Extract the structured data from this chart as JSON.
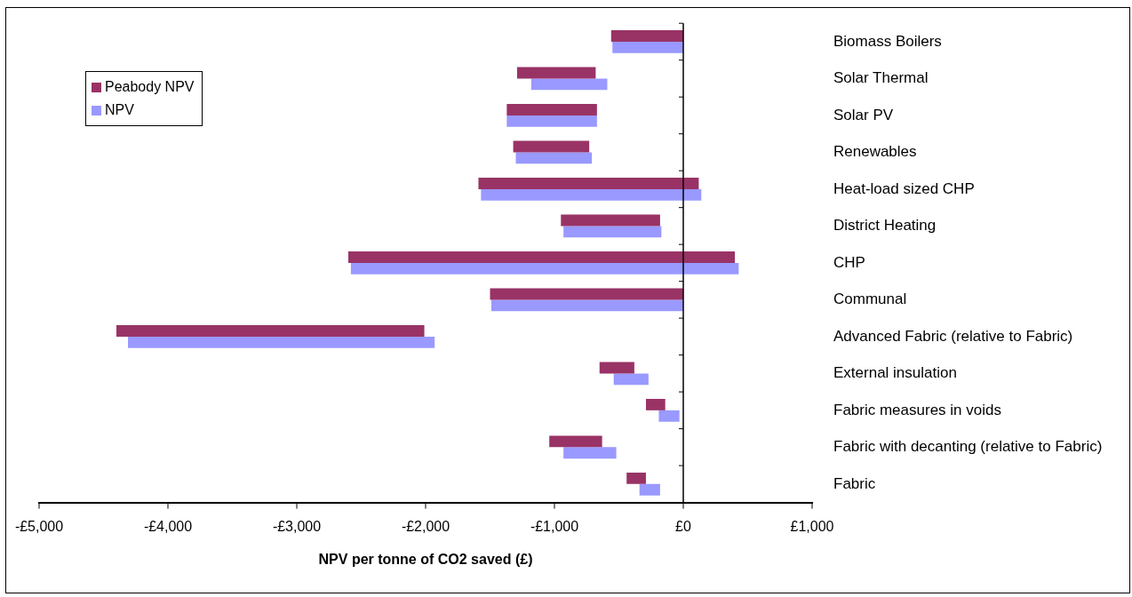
{
  "chart_data": {
    "type": "bar",
    "orientation": "horizontal",
    "xlabel": "NPV per tonne of CO2 saved (£)",
    "categories": [
      "Biomass Boilers",
      "Solar Thermal",
      "Solar PV",
      "Renewables",
      "Heat-load sized CHP",
      "District Heating",
      "CHP",
      "Communal",
      "Advanced Fabric (relative to Fabric)",
      "External insulation",
      "Fabric measures in voids",
      "Fabric with decanting (relative to Fabric)",
      "Fabric"
    ],
    "series": [
      {
        "name": "Peabody NPV",
        "color": "#993366",
        "base": [
          -560,
          -1290,
          -1370,
          -1320,
          -1590,
          -950,
          -2600,
          -1500,
          -4400,
          -650,
          -290,
          -1040,
          -440
        ],
        "values": [
          560,
          610,
          700,
          590,
          1710,
          770,
          3000,
          1500,
          2390,
          270,
          150,
          410,
          150
        ]
      },
      {
        "name": "NPV",
        "color": "#9999ff",
        "base": [
          -550,
          -1180,
          -1370,
          -1300,
          -1570,
          -930,
          -2580,
          -1490,
          -4310,
          -540,
          -190,
          -930,
          -340
        ],
        "values": [
          550,
          590,
          700,
          590,
          1710,
          760,
          3010,
          1490,
          2380,
          270,
          160,
          410,
          160
        ]
      }
    ],
    "xlim": [
      -5000,
      1000
    ],
    "xticks": [
      {
        "value": -5000,
        "label": "-£5,000"
      },
      {
        "value": -4000,
        "label": "-£4,000"
      },
      {
        "value": -3000,
        "label": "-£3,000"
      },
      {
        "value": -2000,
        "label": "-£2,000"
      },
      {
        "value": -1000,
        "label": "-£1,000"
      },
      {
        "value": 0,
        "label": "£0"
      },
      {
        "value": 1000,
        "label": "£1,000"
      }
    ],
    "ref_lines": [
      {
        "axis": "x",
        "value": 0
      }
    ],
    "grid": false,
    "legend": "top left"
  }
}
